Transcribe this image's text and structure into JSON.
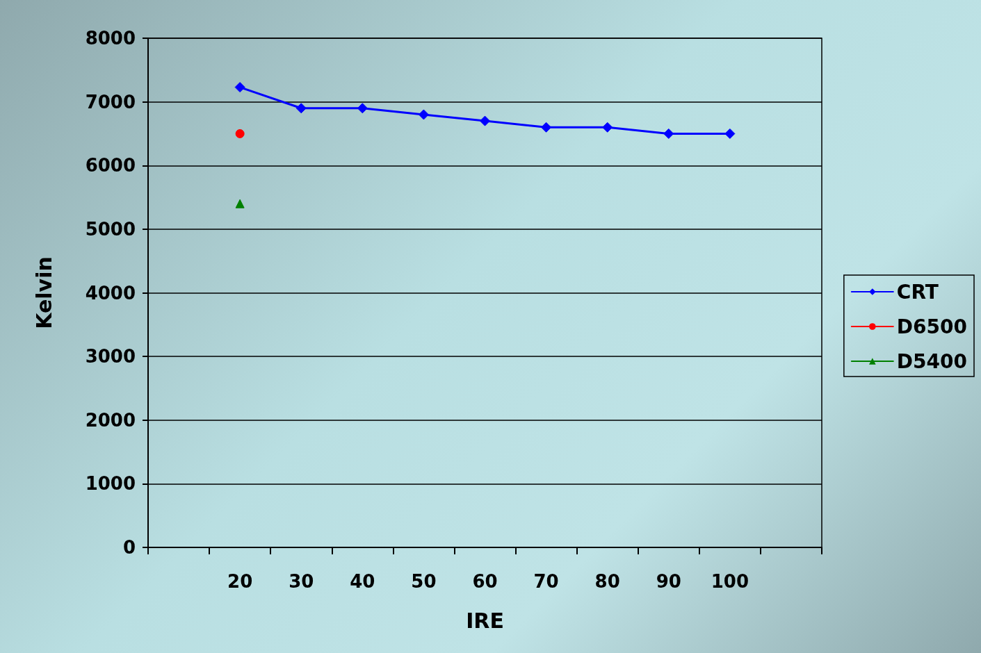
{
  "chart_data": {
    "type": "line",
    "xlabel": "IRE",
    "ylabel": "Kelvin",
    "categories": [
      null,
      "20",
      "30",
      "40",
      "50",
      "60",
      "70",
      "80",
      "90",
      "100",
      null
    ],
    "series": [
      {
        "name": "CRT",
        "color": "#0000ff",
        "marker": "diamond",
        "values": [
          null,
          7230,
          6900,
          6900,
          6800,
          6700,
          6600,
          6600,
          6500,
          6500,
          null
        ]
      },
      {
        "name": "D6500",
        "color": "#ff0000",
        "marker": "circle",
        "values": [
          null,
          6500,
          null,
          null,
          null,
          null,
          null,
          null,
          null,
          null,
          null
        ]
      },
      {
        "name": "D5400",
        "color": "#008000",
        "marker": "triangle",
        "values": [
          null,
          5400,
          null,
          null,
          null,
          null,
          null,
          null,
          null,
          null,
          null
        ]
      }
    ],
    "ylim": [
      0,
      8000
    ],
    "yticks": [
      0,
      1000,
      2000,
      3000,
      4000,
      5000,
      6000,
      7000,
      8000
    ],
    "grid": "y",
    "legend": "right",
    "line_style": "solid"
  }
}
